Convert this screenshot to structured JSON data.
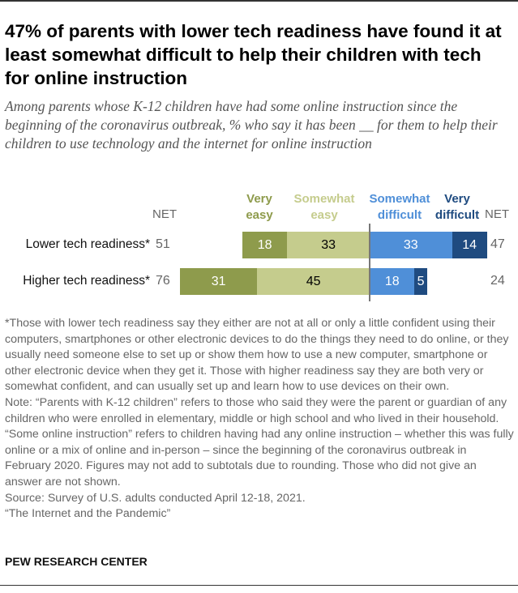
{
  "title": "47% of parents with lower tech readiness have found it at least somewhat difficult to help their children with tech for online instruction",
  "subtitle": "Among parents whose K-12 children have had some online instruction since the beginning of the coronavirus outbreak, % who say it has been __ for them to help their children to use technology and the internet for online instruction",
  "chart_data": {
    "type": "bar",
    "orientation": "horizontal-diverging",
    "net_label": "NET",
    "categories": [
      "Lower tech readiness*",
      "Higher tech readiness*"
    ],
    "series": [
      {
        "name": "Very easy",
        "side": "left",
        "color": "#8e9b4c",
        "text_color": "#ffffff",
        "values": [
          18,
          31
        ]
      },
      {
        "name": "Somewhat easy",
        "side": "left",
        "color": "#c5cc8d",
        "text_color": "#000000",
        "values": [
          33,
          45
        ]
      },
      {
        "name": "Somewhat difficult",
        "side": "right",
        "color": "#4f8fd8",
        "text_color": "#ffffff",
        "values": [
          33,
          18
        ]
      },
      {
        "name": "Very difficult",
        "side": "right",
        "color": "#1f4b80",
        "text_color": "#ffffff",
        "values": [
          14,
          5
        ]
      }
    ],
    "net_easy": [
      51,
      76
    ],
    "net_difficult": [
      47,
      24
    ],
    "headers": {
      "very_easy": [
        "Very",
        "easy"
      ],
      "somewhat_easy": [
        "Somewhat",
        "easy"
      ],
      "somewhat_difficult": [
        "Somewhat",
        "difficult"
      ],
      "very_difficult": [
        "Very",
        "difficult"
      ]
    }
  },
  "notes": {
    "footnote": "*Those with lower tech readiness say they either are not at all or only a little confident using their computers, smartphones or other electronic devices to do the things they need to do online, or they usually need someone else to set up or show them how to use a new computer, smartphone or other electronic device when they get it. Those with higher readiness say they are both very or somewhat confident, and can usually set up and learn how to use devices on their own.",
    "note": "Note: “Parents with K-12 children” refers to those who said they were the parent or guardian of any children who were enrolled in elementary, middle or high school and who lived in their household. “Some online instruction” refers to children having had any online instruction – whether this was fully online or a mix of online and in-person – since the beginning of the coronavirus outbreak in February 2020. Figures may not add to subtotals due to rounding. Those who did not give an answer are not shown.",
    "source": "Source: Survey of U.S. adults conducted April 12-18, 2021.",
    "report": "“The Internet and the Pandemic”"
  },
  "brand": "PEW RESEARCH CENTER"
}
